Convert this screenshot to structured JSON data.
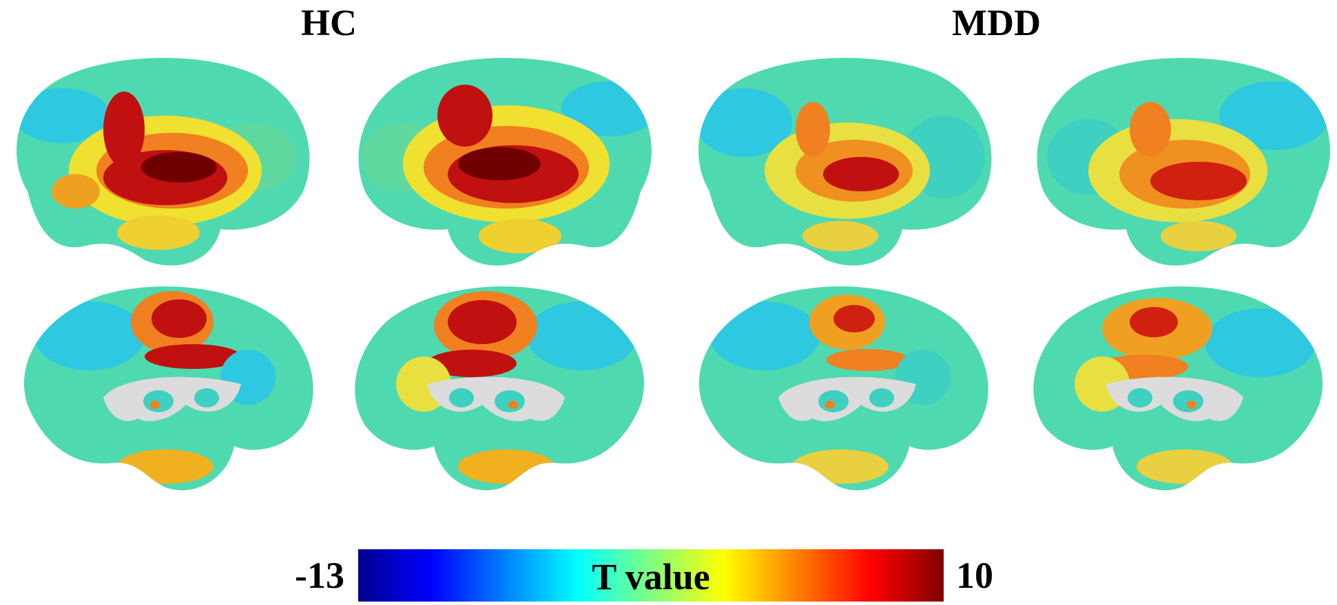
{
  "groups": {
    "hc": {
      "title": "HC"
    },
    "mdd": {
      "title": "MDD"
    }
  },
  "colorbar": {
    "label": "T value",
    "min": "-13",
    "max": "10",
    "colors": [
      "#00008f",
      "#0000ff",
      "#0080ff",
      "#00ffff",
      "#80ff80",
      "#ffff00",
      "#ff8000",
      "#ff0000",
      "#800000"
    ]
  }
}
